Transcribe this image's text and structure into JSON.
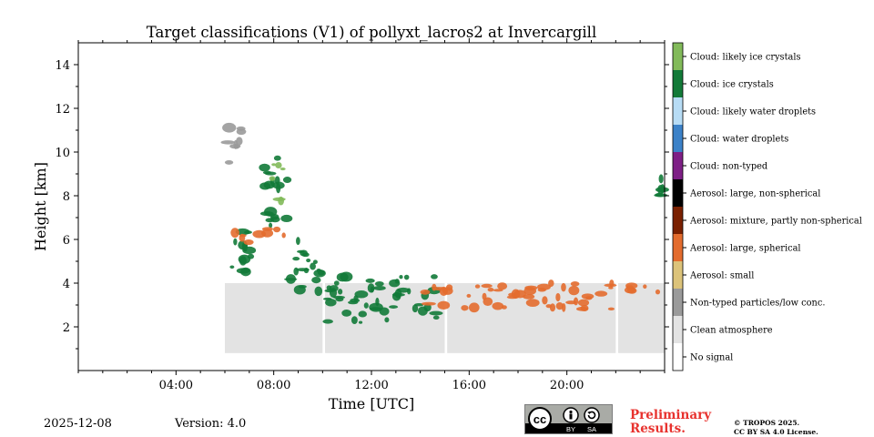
{
  "chart_data": {
    "type": "heatmap",
    "title": "Target classifications (V1) of pollyxt_lacros2 at Invercargill",
    "xlabel": "Time [UTC]",
    "ylabel": "Height [km]",
    "xlim": [
      0,
      24
    ],
    "ylim": [
      0,
      15
    ],
    "x_ticks": [
      {
        "v": 4,
        "label": "04:00"
      },
      {
        "v": 8,
        "label": "08:00"
      },
      {
        "v": 12,
        "label": "12:00"
      },
      {
        "v": 16,
        "label": "16:00"
      },
      {
        "v": 20,
        "label": "20:00"
      }
    ],
    "y_ticks": [
      2,
      4,
      6,
      8,
      10,
      12,
      14
    ],
    "classes": [
      {
        "label": "No signal",
        "color": "#ffffff"
      },
      {
        "label": "Clean atmosphere",
        "color": "#e3e3e3"
      },
      {
        "label": "Non-typed particles/low conc.",
        "color": "#9a9a9a"
      },
      {
        "label": "Aerosol: small",
        "color": "#dcc37a"
      },
      {
        "label": "Aerosol: large, spherical",
        "color": "#e36c2e"
      },
      {
        "label": "Aerosol: mixture, partly non-spherical",
        "color": "#7a2000"
      },
      {
        "label": "Aerosol: large, non-spherical",
        "color": "#000000"
      },
      {
        "label": "Cloud: non-typed",
        "color": "#7e1f86"
      },
      {
        "label": "Cloud: water droplets",
        "color": "#3c82c8"
      },
      {
        "label": "Cloud: likely water droplets",
        "color": "#b7dcf5"
      },
      {
        "label": "Cloud: ice crystals",
        "color": "#127a38"
      },
      {
        "label": "Cloud: likely ice crystals",
        "color": "#82ba5a"
      }
    ],
    "measurement_periods": [
      [
        6.0,
        10.0
      ],
      [
        10.1,
        15.0
      ],
      [
        15.1,
        22.0
      ],
      [
        22.1,
        24.0
      ]
    ],
    "clean_layer_km": [
      0.8,
      4.0
    ],
    "features": [
      {
        "class": "Non-typed particles/low conc.",
        "t": [
          6.0,
          7.0
        ],
        "z": [
          9.5,
          11.2
        ]
      },
      {
        "class": "Cloud: ice crystals",
        "t": [
          7.6,
          8.6
        ],
        "z": [
          6.5,
          9.8
        ]
      },
      {
        "class": "Cloud: likely ice crystals",
        "t": [
          7.9,
          8.5
        ],
        "z": [
          7.5,
          9.5
        ]
      },
      {
        "class": "Cloud: ice crystals",
        "t": [
          6.2,
          7.4
        ],
        "z": [
          4.5,
          6.5
        ]
      },
      {
        "class": "Aerosol: large, spherical",
        "t": [
          6.3,
          8.5
        ],
        "z": [
          5.8,
          6.6
        ]
      },
      {
        "class": "Cloud: ice crystals",
        "t": [
          8.5,
          10.0
        ],
        "z": [
          3.5,
          6.0
        ]
      },
      {
        "class": "Cloud: ice crystals",
        "t": [
          10.2,
          14.8
        ],
        "z": [
          2.2,
          4.3
        ]
      },
      {
        "class": "Aerosol: large, spherical",
        "t": [
          14.0,
          22.0
        ],
        "z": [
          2.8,
          4.0
        ]
      },
      {
        "class": "Aerosol: large, spherical",
        "t": [
          22.2,
          23.8
        ],
        "z": [
          3.5,
          3.9
        ]
      },
      {
        "class": "Cloud: ice crystals",
        "t": [
          23.7,
          24.0
        ],
        "z": [
          8.0,
          9.0
        ]
      }
    ]
  },
  "footer": {
    "date": "2025-12-08",
    "version": "Version: 4.0",
    "preliminary_line1": "Preliminary",
    "preliminary_line2": "Results.",
    "copyright_line1": "© TROPOS 2025.",
    "copyright_line2": "CC BY SA 4.0 License.",
    "cc_text": "cc",
    "cc_by": "BY",
    "cc_sa": "SA"
  }
}
